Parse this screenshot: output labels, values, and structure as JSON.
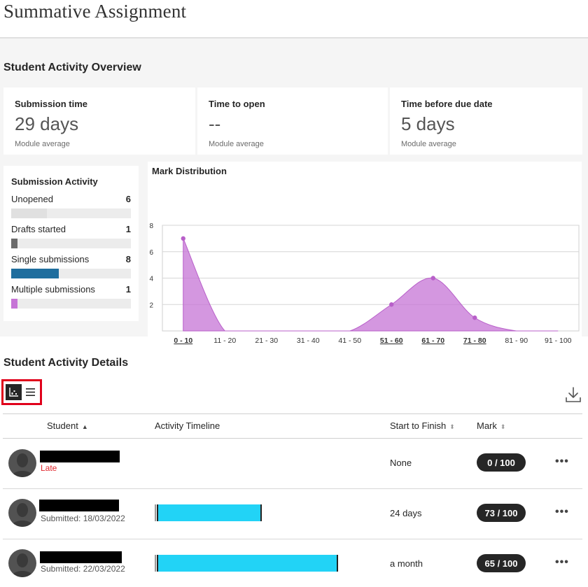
{
  "page": {
    "title": "Summative Assignment"
  },
  "overview": {
    "title": "Student Activity Overview",
    "stats": [
      {
        "label": "Submission time",
        "value": "29 days",
        "sub": "Module average"
      },
      {
        "label": "Time to open",
        "value": "--",
        "sub": "Module average"
      },
      {
        "label": "Time before due date",
        "value": "5 days",
        "sub": "Module average"
      }
    ],
    "submission_activity": {
      "title": "Submission Activity",
      "max": 20,
      "items": [
        {
          "label": "Unopened",
          "count": "6",
          "value": 6,
          "color": "#e0e0e0"
        },
        {
          "label": "Drafts started",
          "count": "1",
          "value": 1,
          "color": "#6b6b6b"
        },
        {
          "label": "Single submissions",
          "count": "8",
          "value": 8,
          "color": "#1f6e9e"
        },
        {
          "label": "Multiple submissions",
          "count": "1",
          "value": 1,
          "color": "#c674d6"
        }
      ]
    }
  },
  "chart_data": {
    "type": "area",
    "title": "Mark Distribution",
    "categories": [
      "0 - 10",
      "11 - 20",
      "21 - 30",
      "31 - 40",
      "41 - 50",
      "51 - 60",
      "61 - 70",
      "71 - 80",
      "81 - 90",
      "91 - 100"
    ],
    "underlined": [
      true,
      false,
      false,
      false,
      false,
      true,
      true,
      true,
      false,
      false
    ],
    "values": [
      7,
      0,
      0,
      0,
      0,
      2,
      4,
      1,
      0,
      0
    ],
    "ylim": [
      0,
      8
    ],
    "yticks": [
      2,
      4,
      6,
      8
    ],
    "grid": true,
    "color": "#c674d6"
  },
  "details": {
    "title": "Student Activity Details",
    "download_icon": "download-icon",
    "view_icons": [
      "chart-view-icon",
      "list-view-icon"
    ],
    "columns": {
      "student": "Student",
      "timeline": "Activity Timeline",
      "start_to_finish": "Start to Finish",
      "mark": "Mark"
    },
    "rows": [
      {
        "status": "Late",
        "finish": "None",
        "mark": "0 / 100",
        "more": "•••"
      },
      {
        "status": "Submitted: 18/03/2022",
        "finish": "24 days",
        "mark": "73 / 100",
        "more": "•••"
      },
      {
        "status": "Submitted: 22/03/2022",
        "finish": "a month",
        "mark": "65 / 100",
        "more": "•••"
      }
    ]
  }
}
